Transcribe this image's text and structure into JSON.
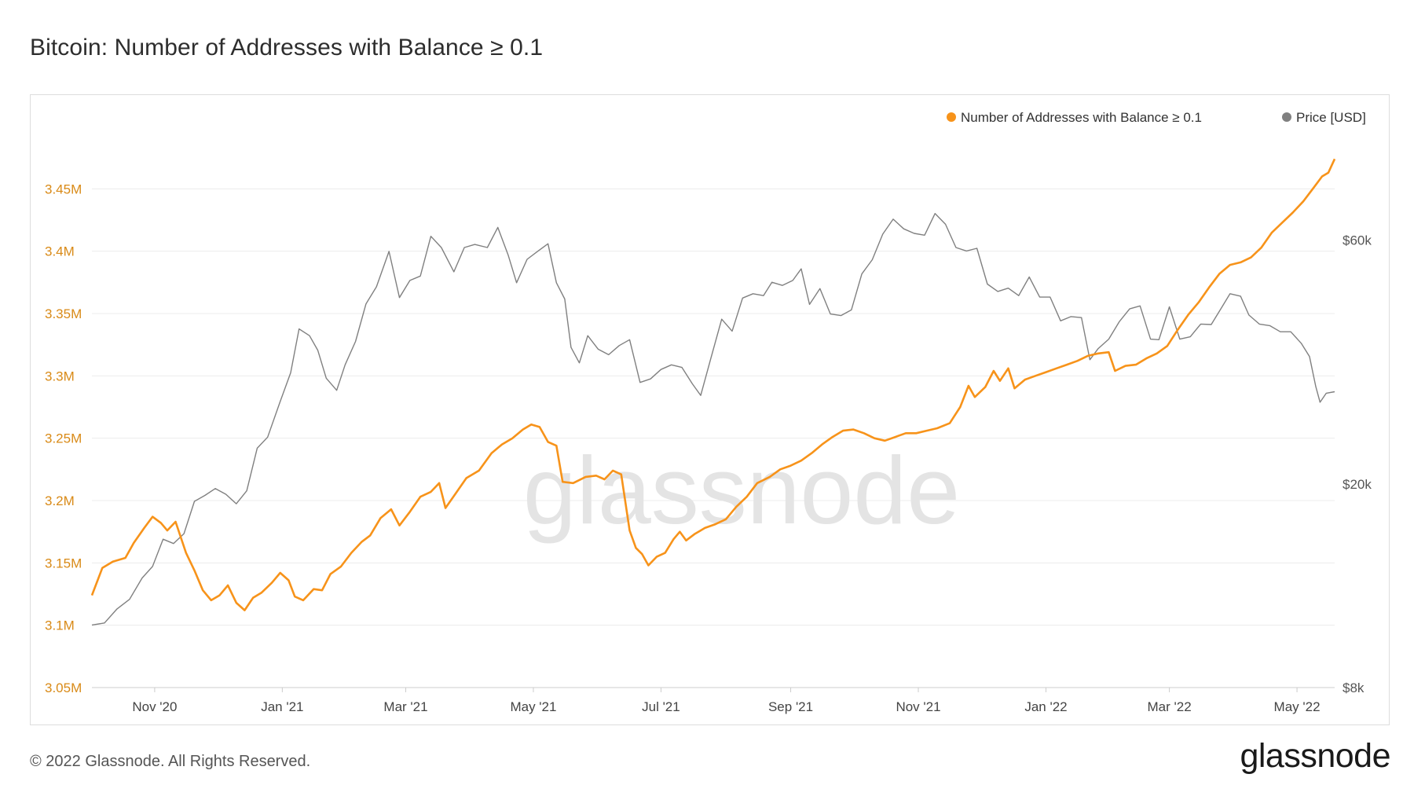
{
  "title": "Bitcoin: Number of Addresses with Balance ≥ 0.1",
  "footer": {
    "copyright": "© 2022 Glassnode. All Rights Reserved.",
    "logo": "glassnode",
    "watermark": "glassnode"
  },
  "colors": {
    "addresses": "#f7931a",
    "price": "#808080",
    "grid": "#ececec",
    "left_axis_text": "#d98a17",
    "right_axis_text": "#555555"
  },
  "chart_data": {
    "type": "line",
    "x_ticks": [
      "Nov '20",
      "Jan '21",
      "Mar '21",
      "May '21",
      "Jul '21",
      "Sep '21",
      "Nov '21",
      "Jan '22",
      "Mar '22",
      "May '22"
    ],
    "y_left": {
      "tick_labels": [
        "3.05M",
        "3.1M",
        "3.15M",
        "3.2M",
        "3.25M",
        "3.3M",
        "3.35M",
        "3.4M",
        "3.45M"
      ],
      "range": [
        3050000,
        3500000
      ]
    },
    "y_right": {
      "scale": "log",
      "tick_labels": [
        "$8k",
        "$20k",
        "$60k"
      ],
      "range": [
        8000,
        100000
      ]
    },
    "legend_position": "top-right",
    "grid": true,
    "series": [
      {
        "name": "Number of Addresses with Balance ≥ 0.1",
        "axis": "left",
        "points": [
          [
            "2020-10-02",
            3124000
          ],
          [
            "2020-10-07",
            3146000
          ],
          [
            "2020-10-12",
            3151000
          ],
          [
            "2020-10-18",
            3154000
          ],
          [
            "2020-10-22",
            3166000
          ],
          [
            "2020-10-27",
            3178000
          ],
          [
            "2020-10-31",
            3187000
          ],
          [
            "2020-11-04",
            3182000
          ],
          [
            "2020-11-07",
            3176000
          ],
          [
            "2020-11-11",
            3183000
          ],
          [
            "2020-11-16",
            3158000
          ],
          [
            "2020-11-20",
            3144000
          ],
          [
            "2020-11-24",
            3128000
          ],
          [
            "2020-11-28",
            3120000
          ],
          [
            "2020-12-02",
            3124000
          ],
          [
            "2020-12-06",
            3132000
          ],
          [
            "2020-12-10",
            3118000
          ],
          [
            "2020-12-14",
            3112000
          ],
          [
            "2020-12-18",
            3122000
          ],
          [
            "2020-12-22",
            3126000
          ],
          [
            "2020-12-27",
            3134000
          ],
          [
            "2020-12-31",
            3142000
          ],
          [
            "2021-01-04",
            3136000
          ],
          [
            "2021-01-07",
            3123000
          ],
          [
            "2021-01-11",
            3120000
          ],
          [
            "2021-01-16",
            3129000
          ],
          [
            "2021-01-20",
            3128000
          ],
          [
            "2021-01-24",
            3141000
          ],
          [
            "2021-01-29",
            3147000
          ],
          [
            "2021-02-03",
            3158000
          ],
          [
            "2021-02-08",
            3167000
          ],
          [
            "2021-02-12",
            3172000
          ],
          [
            "2021-02-17",
            3186000
          ],
          [
            "2021-02-22",
            3193000
          ],
          [
            "2021-02-26",
            3180000
          ],
          [
            "2021-03-03",
            3191000
          ],
          [
            "2021-03-08",
            3203000
          ],
          [
            "2021-03-13",
            3207000
          ],
          [
            "2021-03-17",
            3214000
          ],
          [
            "2021-03-20",
            3194000
          ],
          [
            "2021-03-25",
            3206000
          ],
          [
            "2021-03-30",
            3218000
          ],
          [
            "2021-04-05",
            3224000
          ],
          [
            "2021-04-11",
            3238000
          ],
          [
            "2021-04-16",
            3245000
          ],
          [
            "2021-04-21",
            3250000
          ],
          [
            "2021-04-26",
            3257000
          ],
          [
            "2021-04-30",
            3261000
          ],
          [
            "2021-05-04",
            3259000
          ],
          [
            "2021-05-08",
            3247000
          ],
          [
            "2021-05-12",
            3244000
          ],
          [
            "2021-05-15",
            3215000
          ],
          [
            "2021-05-20",
            3214000
          ],
          [
            "2021-05-26",
            3219000
          ],
          [
            "2021-05-31",
            3220000
          ],
          [
            "2021-06-04",
            3217000
          ],
          [
            "2021-06-08",
            3224000
          ],
          [
            "2021-06-12",
            3221000
          ],
          [
            "2021-06-16",
            3176000
          ],
          [
            "2021-06-19",
            3162000
          ],
          [
            "2021-06-22",
            3157000
          ],
          [
            "2021-06-25",
            3148000
          ],
          [
            "2021-06-29",
            3155000
          ],
          [
            "2021-07-03",
            3158000
          ],
          [
            "2021-07-07",
            3169000
          ],
          [
            "2021-07-10",
            3175000
          ],
          [
            "2021-07-13",
            3168000
          ],
          [
            "2021-07-17",
            3173000
          ],
          [
            "2021-07-22",
            3178000
          ],
          [
            "2021-07-27",
            3181000
          ],
          [
            "2021-08-01",
            3185000
          ],
          [
            "2021-08-06",
            3195000
          ],
          [
            "2021-08-11",
            3203000
          ],
          [
            "2021-08-16",
            3214000
          ],
          [
            "2021-08-22",
            3219000
          ],
          [
            "2021-08-27",
            3225000
          ],
          [
            "2021-09-01",
            3228000
          ],
          [
            "2021-09-06",
            3232000
          ],
          [
            "2021-09-11",
            3238000
          ],
          [
            "2021-09-16",
            3245000
          ],
          [
            "2021-09-21",
            3251000
          ],
          [
            "2021-09-26",
            3256000
          ],
          [
            "2021-10-01",
            3257000
          ],
          [
            "2021-10-06",
            3254000
          ],
          [
            "2021-10-11",
            3250000
          ],
          [
            "2021-10-16",
            3248000
          ],
          [
            "2021-10-21",
            3251000
          ],
          [
            "2021-10-26",
            3254000
          ],
          [
            "2021-10-31",
            3254000
          ],
          [
            "2021-11-05",
            3256000
          ],
          [
            "2021-11-10",
            3258000
          ],
          [
            "2021-11-16",
            3262000
          ],
          [
            "2021-11-21",
            3275000
          ],
          [
            "2021-11-25",
            3292000
          ],
          [
            "2021-11-28",
            3283000
          ],
          [
            "2021-12-03",
            3291000
          ],
          [
            "2021-12-07",
            3304000
          ],
          [
            "2021-12-10",
            3296000
          ],
          [
            "2021-12-14",
            3306000
          ],
          [
            "2021-12-17",
            3290000
          ],
          [
            "2021-12-22",
            3297000
          ],
          [
            "2021-12-27",
            3300000
          ],
          [
            "2022-01-01",
            3303000
          ],
          [
            "2022-01-06",
            3306000
          ],
          [
            "2022-01-11",
            3309000
          ],
          [
            "2022-01-16",
            3312000
          ],
          [
            "2022-01-21",
            3316000
          ],
          [
            "2022-01-26",
            3318000
          ],
          [
            "2022-01-31",
            3319000
          ],
          [
            "2022-02-03",
            3304000
          ],
          [
            "2022-02-08",
            3308000
          ],
          [
            "2022-02-13",
            3309000
          ],
          [
            "2022-02-18",
            3314000
          ],
          [
            "2022-02-23",
            3318000
          ],
          [
            "2022-02-28",
            3324000
          ],
          [
            "2022-03-05",
            3337000
          ],
          [
            "2022-03-10",
            3349000
          ],
          [
            "2022-03-15",
            3359000
          ],
          [
            "2022-03-20",
            3371000
          ],
          [
            "2022-03-25",
            3382000
          ],
          [
            "2022-03-30",
            3389000
          ],
          [
            "2022-04-04",
            3391000
          ],
          [
            "2022-04-09",
            3395000
          ],
          [
            "2022-04-14",
            3403000
          ],
          [
            "2022-04-19",
            3415000
          ],
          [
            "2022-04-24",
            3423000
          ],
          [
            "2022-04-29",
            3431000
          ],
          [
            "2022-05-04",
            3440000
          ],
          [
            "2022-05-09",
            3451000
          ],
          [
            "2022-05-13",
            3460000
          ],
          [
            "2022-05-16",
            3463000
          ],
          [
            "2022-05-19",
            3474000
          ]
        ]
      },
      {
        "name": "Price [USD]",
        "axis": "right",
        "points": [
          [
            "2020-10-02",
            10600
          ],
          [
            "2020-10-08",
            10700
          ],
          [
            "2020-10-14",
            11400
          ],
          [
            "2020-10-20",
            11900
          ],
          [
            "2020-10-26",
            13100
          ],
          [
            "2020-10-31",
            13800
          ],
          [
            "2020-11-05",
            15600
          ],
          [
            "2020-11-10",
            15300
          ],
          [
            "2020-11-15",
            16000
          ],
          [
            "2020-11-20",
            18500
          ],
          [
            "2020-11-25",
            19000
          ],
          [
            "2020-11-30",
            19600
          ],
          [
            "2020-12-05",
            19100
          ],
          [
            "2020-12-10",
            18300
          ],
          [
            "2020-12-15",
            19400
          ],
          [
            "2020-12-20",
            23500
          ],
          [
            "2020-12-25",
            24700
          ],
          [
            "2020-12-31",
            29000
          ],
          [
            "2021-01-05",
            33000
          ],
          [
            "2021-01-09",
            40200
          ],
          [
            "2021-01-14",
            39000
          ],
          [
            "2021-01-18",
            36500
          ],
          [
            "2021-01-22",
            32200
          ],
          [
            "2021-01-27",
            30500
          ],
          [
            "2021-01-31",
            34200
          ],
          [
            "2021-02-05",
            38000
          ],
          [
            "2021-02-10",
            45000
          ],
          [
            "2021-02-15",
            48600
          ],
          [
            "2021-02-21",
            57000
          ],
          [
            "2021-02-26",
            46300
          ],
          [
            "2021-03-03",
            50000
          ],
          [
            "2021-03-08",
            51000
          ],
          [
            "2021-03-13",
            61000
          ],
          [
            "2021-03-18",
            58000
          ],
          [
            "2021-03-24",
            52000
          ],
          [
            "2021-03-29",
            58000
          ],
          [
            "2021-04-03",
            58800
          ],
          [
            "2021-04-09",
            58000
          ],
          [
            "2021-04-14",
            63500
          ],
          [
            "2021-04-19",
            56000
          ],
          [
            "2021-04-23",
            49500
          ],
          [
            "2021-04-28",
            55000
          ],
          [
            "2021-05-03",
            57000
          ],
          [
            "2021-05-08",
            59000
          ],
          [
            "2021-05-12",
            49500
          ],
          [
            "2021-05-16",
            46000
          ],
          [
            "2021-05-19",
            37000
          ],
          [
            "2021-05-23",
            34500
          ],
          [
            "2021-05-27",
            39000
          ],
          [
            "2021-06-01",
            36700
          ],
          [
            "2021-06-06",
            35800
          ],
          [
            "2021-06-11",
            37300
          ],
          [
            "2021-06-16",
            38300
          ],
          [
            "2021-06-21",
            31600
          ],
          [
            "2021-06-26",
            32100
          ],
          [
            "2021-07-01",
            33500
          ],
          [
            "2021-07-06",
            34200
          ],
          [
            "2021-07-11",
            33800
          ],
          [
            "2021-07-16",
            31400
          ],
          [
            "2021-07-20",
            29800
          ],
          [
            "2021-07-25",
            35400
          ],
          [
            "2021-07-30",
            42000
          ],
          [
            "2021-08-04",
            39800
          ],
          [
            "2021-08-09",
            46200
          ],
          [
            "2021-08-14",
            47100
          ],
          [
            "2021-08-19",
            46700
          ],
          [
            "2021-08-23",
            49600
          ],
          [
            "2021-08-28",
            48900
          ],
          [
            "2021-09-02",
            50000
          ],
          [
            "2021-09-06",
            52700
          ],
          [
            "2021-09-10",
            44900
          ],
          [
            "2021-09-15",
            48200
          ],
          [
            "2021-09-20",
            43000
          ],
          [
            "2021-09-25",
            42700
          ],
          [
            "2021-09-30",
            43800
          ],
          [
            "2021-10-05",
            51500
          ],
          [
            "2021-10-10",
            54900
          ],
          [
            "2021-10-15",
            61600
          ],
          [
            "2021-10-20",
            65900
          ],
          [
            "2021-10-25",
            63100
          ],
          [
            "2021-10-30",
            61800
          ],
          [
            "2021-11-04",
            61300
          ],
          [
            "2021-11-09",
            67600
          ],
          [
            "2021-11-14",
            64400
          ],
          [
            "2021-11-19",
            58000
          ],
          [
            "2021-11-24",
            57100
          ],
          [
            "2021-11-29",
            57800
          ],
          [
            "2021-12-04",
            49200
          ],
          [
            "2021-12-09",
            47600
          ],
          [
            "2021-12-14",
            48300
          ],
          [
            "2021-12-19",
            46700
          ],
          [
            "2021-12-24",
            50800
          ],
          [
            "2021-12-29",
            46400
          ],
          [
            "2022-01-03",
            46400
          ],
          [
            "2022-01-08",
            41700
          ],
          [
            "2022-01-13",
            42500
          ],
          [
            "2022-01-18",
            42300
          ],
          [
            "2022-01-22",
            35000
          ],
          [
            "2022-01-26",
            36800
          ],
          [
            "2022-01-31",
            38400
          ],
          [
            "2022-02-05",
            41500
          ],
          [
            "2022-02-10",
            44000
          ],
          [
            "2022-02-15",
            44600
          ],
          [
            "2022-02-20",
            38400
          ],
          [
            "2022-02-24",
            38300
          ],
          [
            "2022-03-01",
            44400
          ],
          [
            "2022-03-06",
            38400
          ],
          [
            "2022-03-11",
            38800
          ],
          [
            "2022-03-16",
            41100
          ],
          [
            "2022-03-21",
            41000
          ],
          [
            "2022-03-26",
            44300
          ],
          [
            "2022-03-30",
            47100
          ],
          [
            "2022-04-04",
            46600
          ],
          [
            "2022-04-08",
            42800
          ],
          [
            "2022-04-13",
            41100
          ],
          [
            "2022-04-18",
            40800
          ],
          [
            "2022-04-23",
            39700
          ],
          [
            "2022-04-28",
            39700
          ],
          [
            "2022-05-03",
            37700
          ],
          [
            "2022-05-07",
            35500
          ],
          [
            "2022-05-10",
            31000
          ],
          [
            "2022-05-12",
            28900
          ],
          [
            "2022-05-15",
            30100
          ],
          [
            "2022-05-19",
            30300
          ]
        ]
      }
    ]
  }
}
